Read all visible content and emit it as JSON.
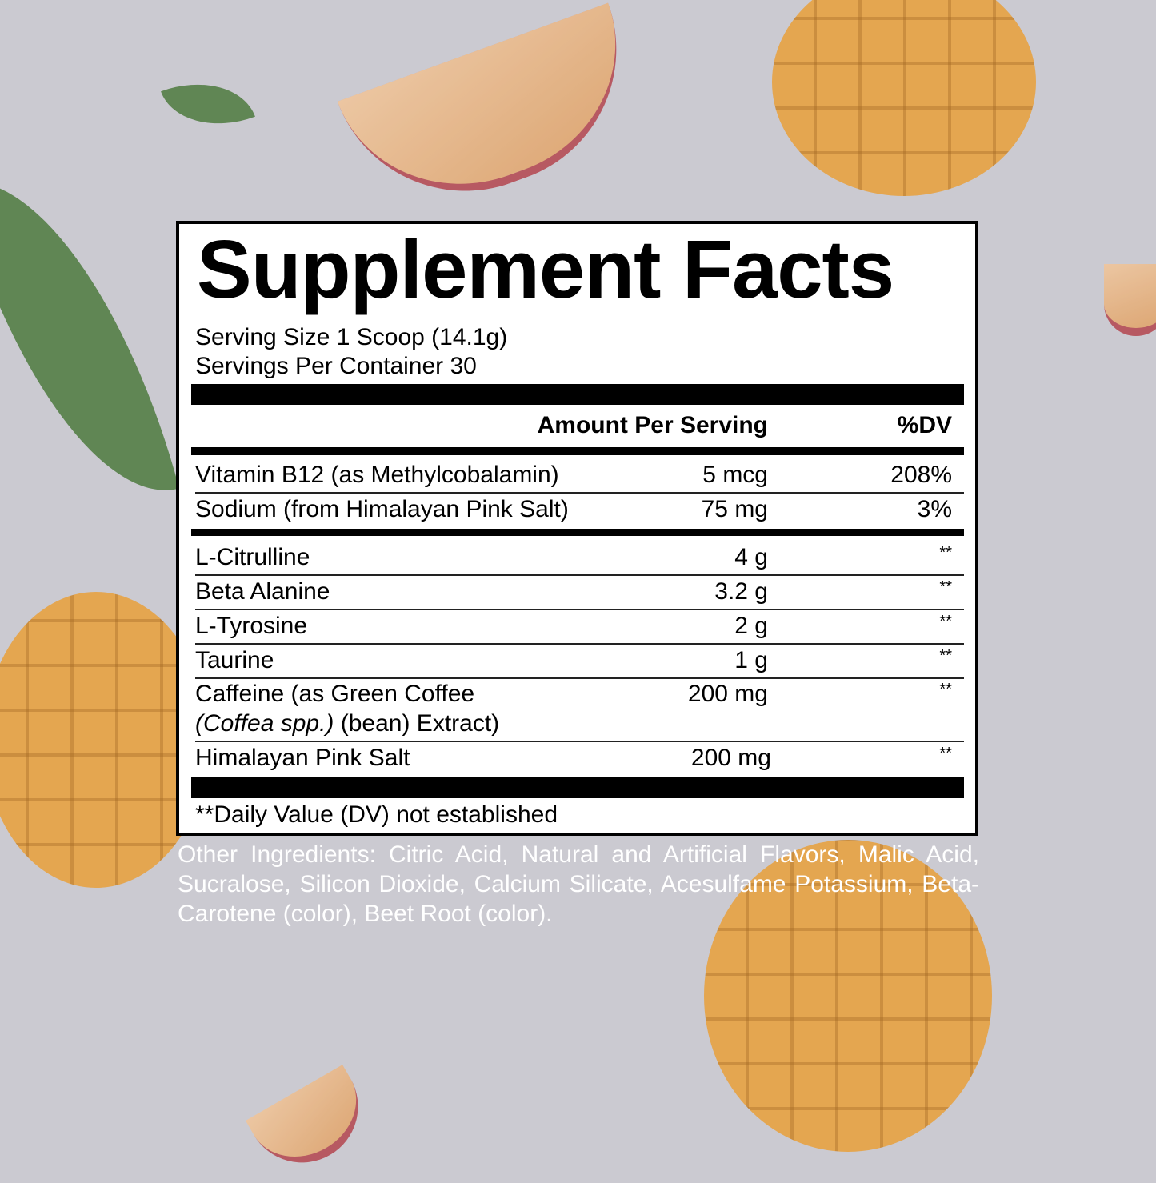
{
  "title": "Supplement Facts",
  "serving_size": "Serving Size 1 Scoop (14.1g)",
  "servings_per_container": "Servings Per Container 30",
  "header": {
    "amount": "Amount Per Serving",
    "dv": "%DV"
  },
  "vitamins": [
    {
      "name": "Vitamin B12 (as Methylcobalamin)",
      "amount": "5 mcg",
      "dv": "208%"
    },
    {
      "name": "Sodium (from Himalayan Pink Salt)",
      "amount": "75 mg",
      "dv": "3%"
    }
  ],
  "ingredients": [
    {
      "name": "L-Citrulline",
      "amount": "4 g",
      "dv": "**"
    },
    {
      "name": "Beta Alanine",
      "amount": "3.2 g",
      "dv": "**"
    },
    {
      "name": "L-Tyrosine",
      "amount": "2 g",
      "dv": "**"
    },
    {
      "name": "Taurine",
      "amount": "1 g",
      "dv": "**"
    },
    {
      "name": "Caffeine (as Green Coffee",
      "name_line2_italic": "(Coffea spp.)",
      "name_line2_rest": " (bean) Extract)",
      "amount": "200 mg",
      "dv": "**"
    },
    {
      "name": "Himalayan Pink Salt",
      "amount": "200 mg",
      "dv": "**"
    }
  ],
  "footnote": "**Daily Value (DV) not established",
  "other_ingredients": "Other Ingredients: Citric Acid, Natural and Artificial Flavors, Malic Acid, Sucralose, Silicon Dioxide, Calcium Silicate, Acesulfame Potassium, Beta-Carotene (color), Beet Root (color).",
  "colors": {
    "background": "#cbcad1",
    "mango": "#e9a03a",
    "label_border": "#000000"
  }
}
